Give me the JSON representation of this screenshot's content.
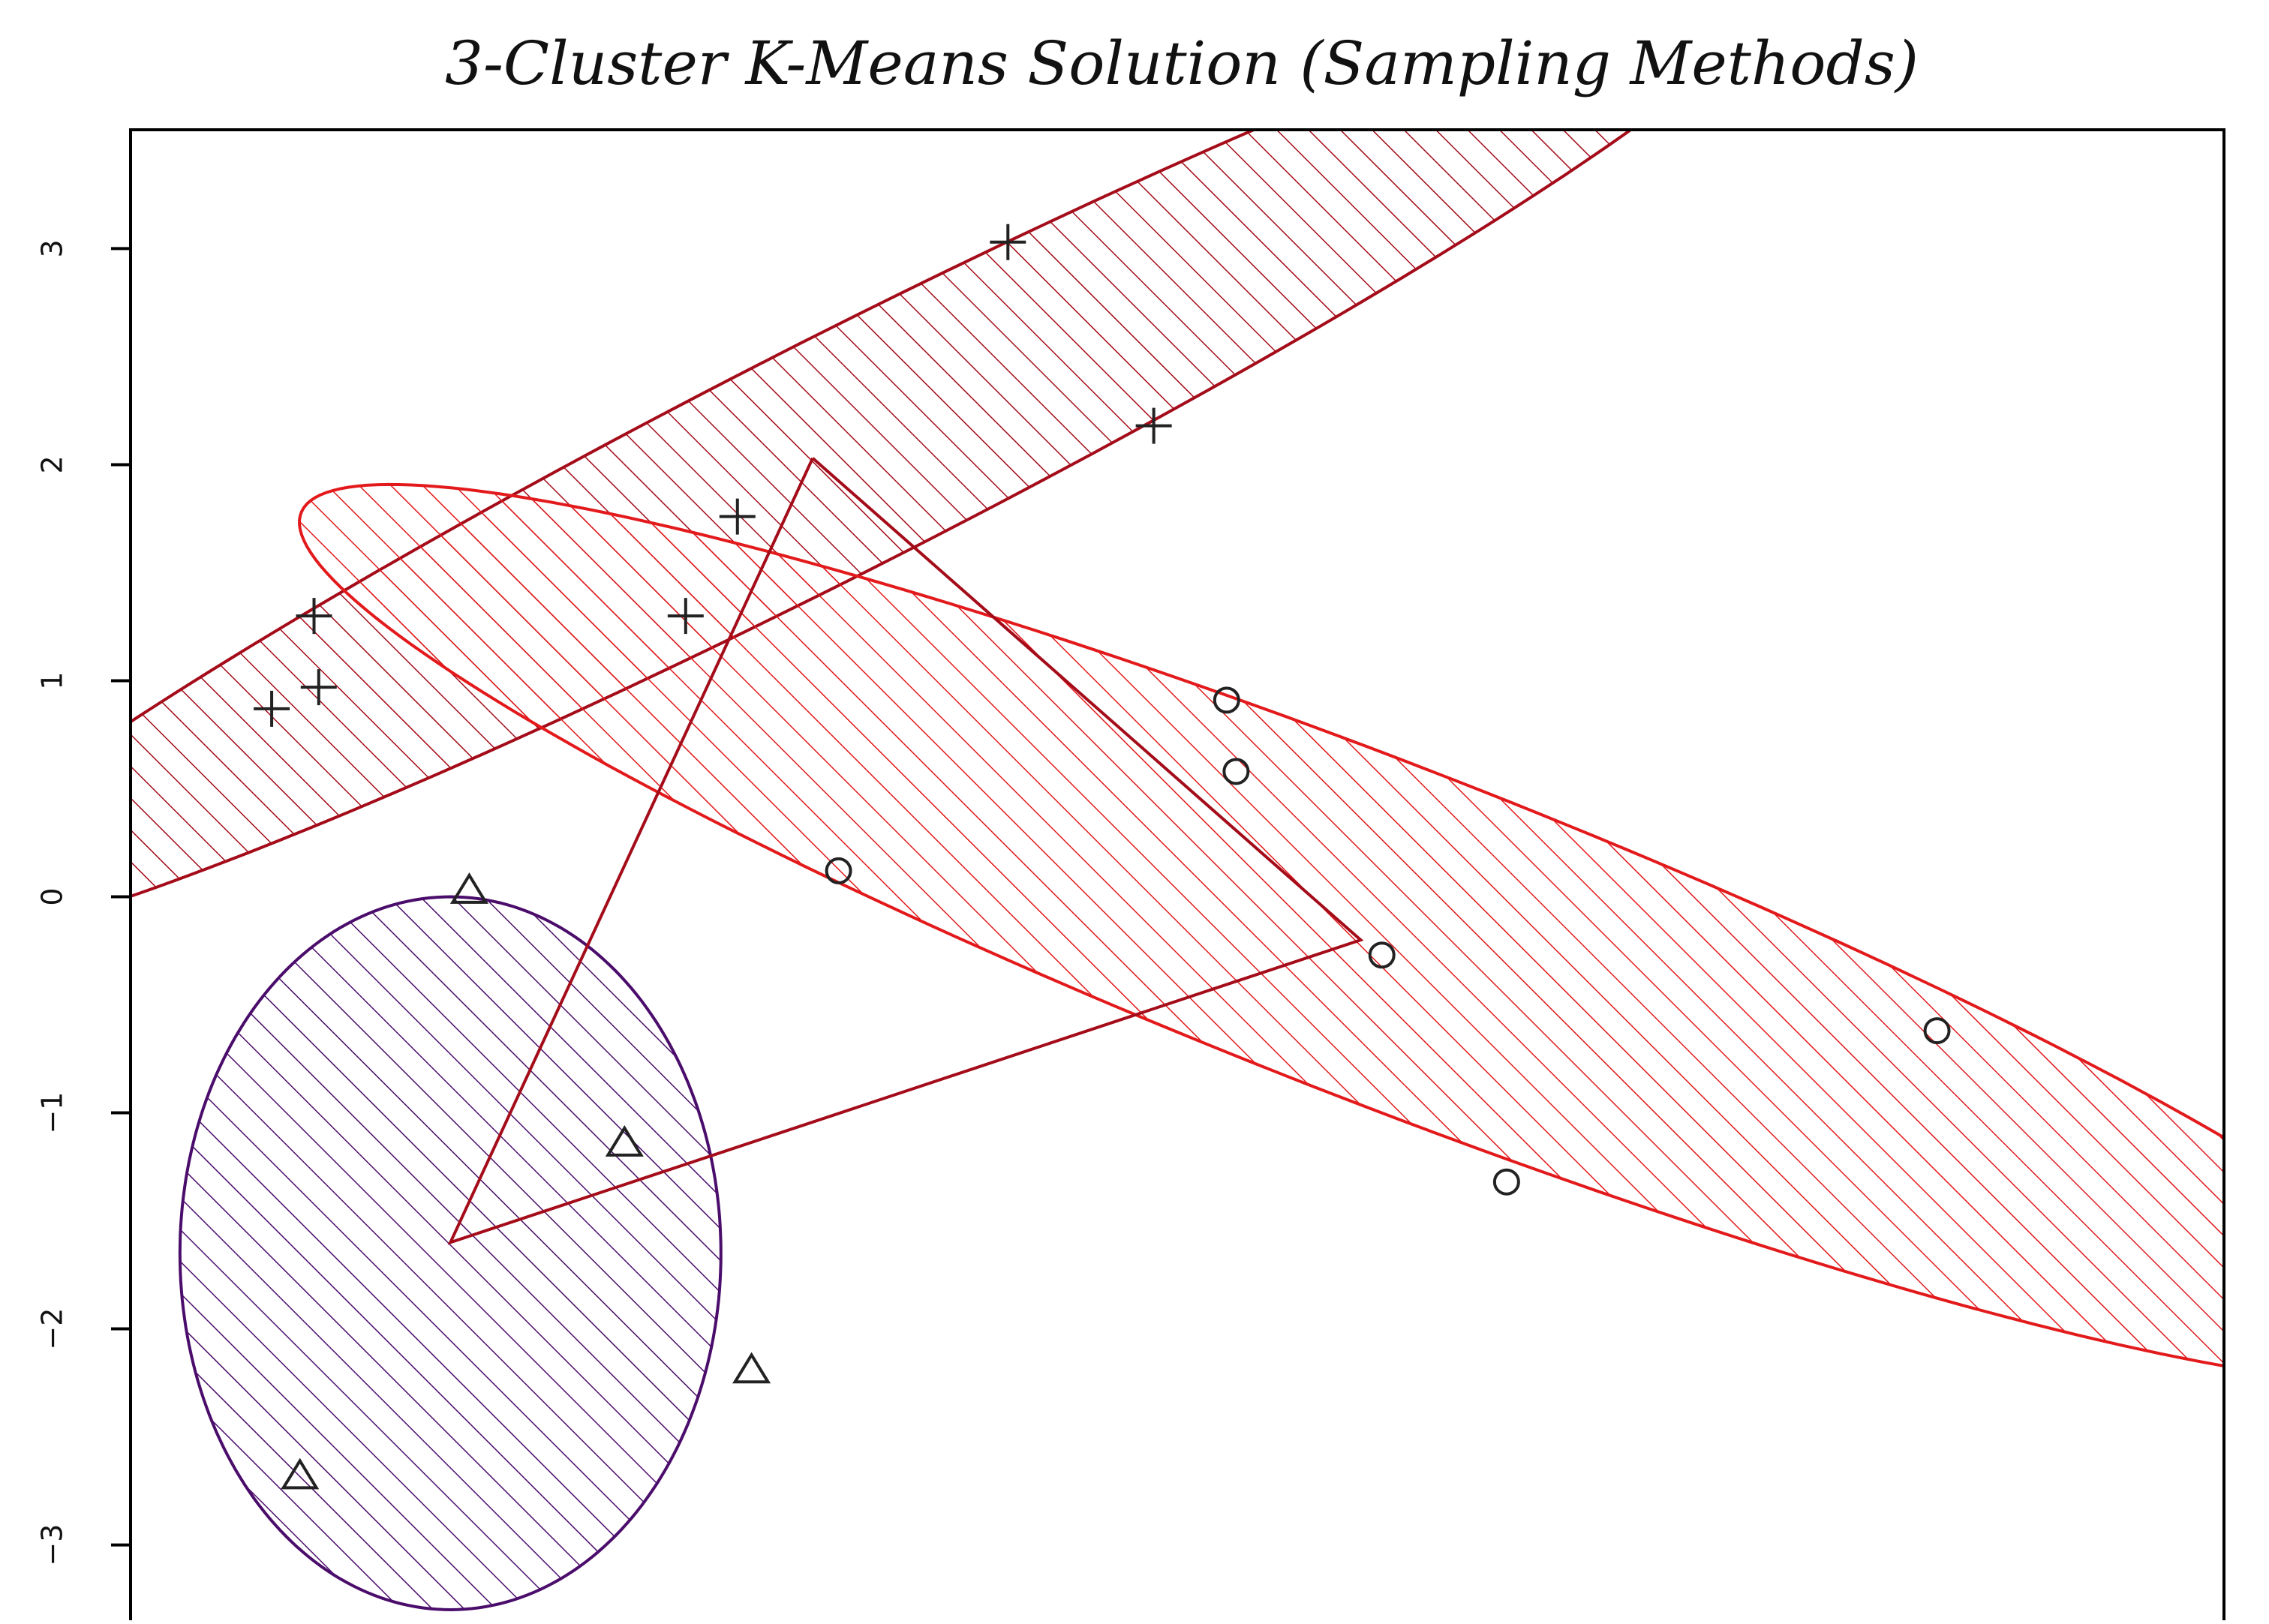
{
  "chart_data": {
    "type": "scatter",
    "title": "3-Cluster K-Means Solution (Sampling Methods)",
    "xlim": [
      -4.2,
      4.7
    ],
    "ylim": [
      -3.55,
      3.55
    ],
    "yticks": [
      -3,
      -2,
      -1,
      0,
      1,
      2,
      3
    ],
    "ytick_labels": [
      "−3",
      "−2",
      "−1",
      "0",
      "1",
      "2",
      "3"
    ],
    "grid": false,
    "series": [
      {
        "symbol": "plus",
        "color": "#a40c1a",
        "points": [
          [
            -3.6,
            0.87
          ],
          [
            -3.42,
            1.3
          ],
          [
            -3.4,
            0.97
          ],
          [
            -1.84,
            1.3
          ],
          [
            -1.62,
            1.76
          ],
          [
            -0.47,
            3.03
          ],
          [
            0.15,
            2.18
          ]
        ],
        "ellipse": {
          "center": [
            -1.2,
            2.04
          ],
          "semi_axes": [
            4.6,
            0.53
          ],
          "angle_deg": 29
        }
      },
      {
        "symbol": "circle",
        "color": "#e31a1c",
        "points": [
          [
            -1.19,
            0.12
          ],
          [
            0.46,
            0.91
          ],
          [
            0.5,
            0.58
          ],
          [
            1.12,
            -0.27
          ],
          [
            1.65,
            -1.32
          ],
          [
            3.48,
            -0.62
          ]
        ],
        "ellipse": {
          "center": [
            1.13,
            -0.17
          ],
          "semi_axes": [
            5.0,
            0.77
          ],
          "angle_deg": -23
        }
      },
      {
        "symbol": "triangle",
        "color": "#4b0d6b",
        "points": [
          [
            -3.48,
            -2.68
          ],
          [
            -2.76,
            0.03
          ],
          [
            -2.1,
            -1.14
          ],
          [
            -1.56,
            -2.19
          ]
        ],
        "ellipse": {
          "center": [
            -2.84,
            -1.65
          ],
          "semi_axes": [
            1.15,
            1.65
          ],
          "angle_deg": 0
        }
      }
    ],
    "centroid_lines": [
      [
        -1.3,
        2.03
      ],
      [
        1.03,
        -0.2
      ],
      [
        -2.84,
        -1.6
      ],
      [
        -1.3,
        2.03
      ]
    ],
    "colors": {
      "frame": "#000000",
      "text": "#111111",
      "markers": "#222222",
      "centroid_line": "#a40c1a"
    }
  }
}
